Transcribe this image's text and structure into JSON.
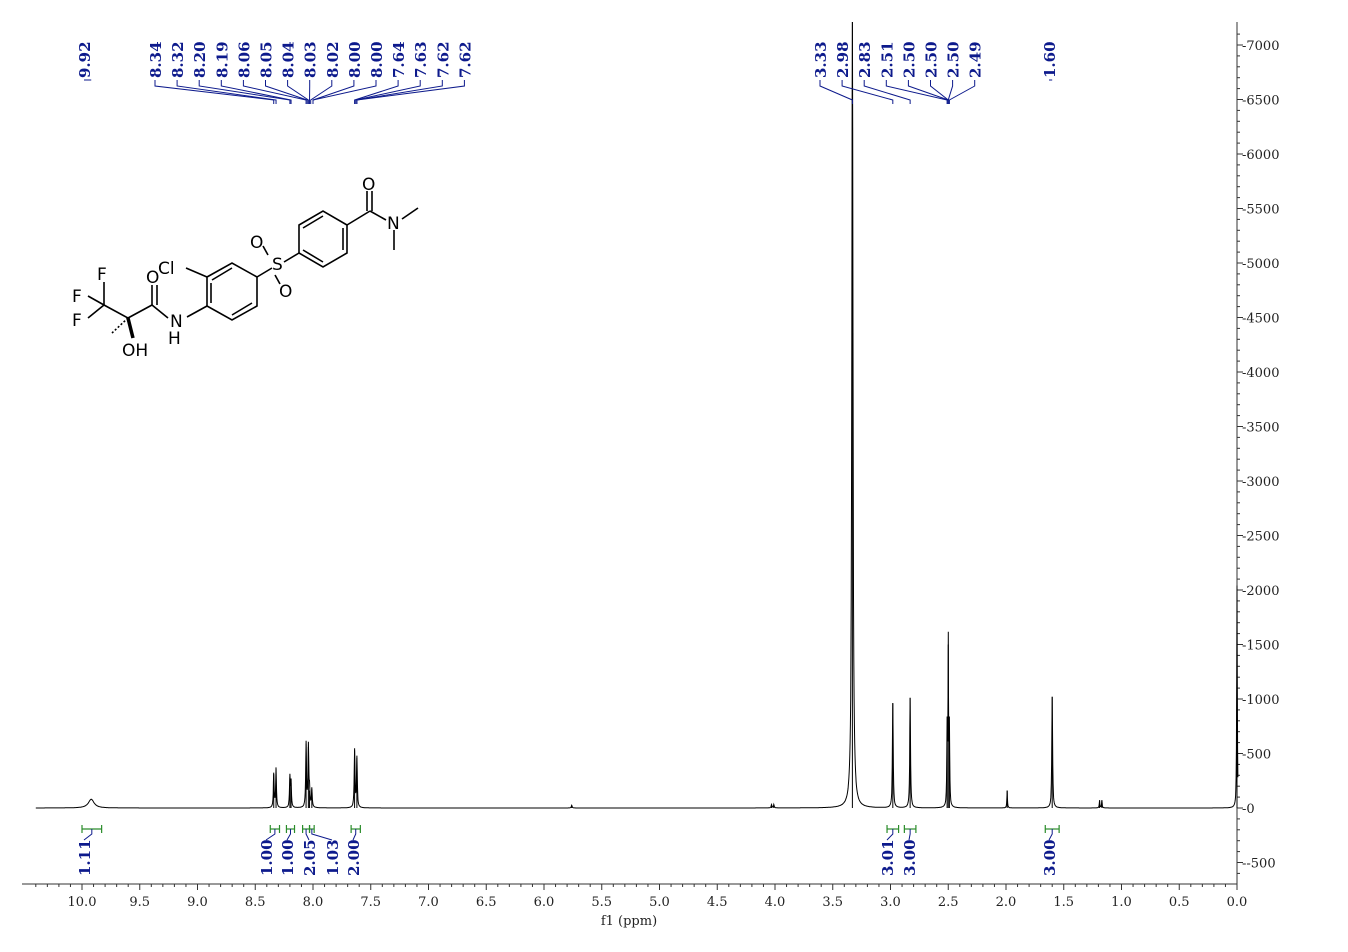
{
  "chart_data": {
    "type": "line",
    "xlabel": "f1 (ppm)",
    "ylabel": "",
    "xlim": [
      10.4,
      0.0
    ],
    "ylim": [
      -700,
      7200
    ],
    "x_ticks": [
      "10.0",
      "9.5",
      "9.0",
      "8.5",
      "8.0",
      "7.5",
      "7.0",
      "6.5",
      "6.0",
      "5.5",
      "5.0",
      "4.5",
      "4.0",
      "3.5",
      "3.0",
      "2.5",
      "2.0",
      "1.5",
      "1.0",
      "0.5",
      "0.0"
    ],
    "y_ticks": [
      "7000",
      "6500",
      "6000",
      "5500",
      "5000",
      "4500",
      "4000",
      "3500",
      "3000",
      "2500",
      "2000",
      "1500",
      "1000",
      "500",
      "0",
      "-500"
    ],
    "peaks": [
      {
        "x": 9.92,
        "y": 80,
        "width": 0.03
      },
      {
        "x": 8.34,
        "y": 310,
        "width": 0.004
      },
      {
        "x": 8.32,
        "y": 360,
        "width": 0.004
      },
      {
        "x": 8.2,
        "y": 280,
        "width": 0.004
      },
      {
        "x": 8.19,
        "y": 230,
        "width": 0.004
      },
      {
        "x": 8.06,
        "y": 590,
        "width": 0.004
      },
      {
        "x": 8.04,
        "y": 560,
        "width": 0.004
      },
      {
        "x": 8.03,
        "y": 160,
        "width": 0.004
      },
      {
        "x": 8.01,
        "y": 170,
        "width": 0.004
      },
      {
        "x": 7.64,
        "y": 530,
        "width": 0.004
      },
      {
        "x": 7.62,
        "y": 460,
        "width": 0.004
      },
      {
        "x": 5.76,
        "y": 25,
        "width": 0.004
      },
      {
        "x": 4.03,
        "y": 30,
        "width": 0.004
      },
      {
        "x": 4.01,
        "y": 30,
        "width": 0.004
      },
      {
        "x": 3.33,
        "y": 7300,
        "width": 0.006
      },
      {
        "x": 2.98,
        "y": 960,
        "width": 0.004
      },
      {
        "x": 2.83,
        "y": 1010,
        "width": 0.004
      },
      {
        "x": 2.51,
        "y": 700,
        "width": 0.003
      },
      {
        "x": 2.5,
        "y": 1500,
        "width": 0.003
      },
      {
        "x": 2.49,
        "y": 700,
        "width": 0.003
      },
      {
        "x": 1.99,
        "y": 160,
        "width": 0.003
      },
      {
        "x": 1.6,
        "y": 1020,
        "width": 0.004
      },
      {
        "x": 1.19,
        "y": 70,
        "width": 0.003
      },
      {
        "x": 1.17,
        "y": 70,
        "width": 0.003
      },
      {
        "x": 0.0,
        "y": 2040,
        "width": 0.003
      }
    ],
    "peak_labels": [
      "9.92",
      "8.34",
      "8.32",
      "8.20",
      "8.19",
      "8.06",
      "8.05",
      "8.04",
      "8.03",
      "8.02",
      "8.00",
      "8.00",
      "7.64",
      "7.63",
      "7.62",
      "7.62",
      "3.33",
      "2.98",
      "2.83",
      "2.51",
      "2.50",
      "2.50",
      "2.50",
      "2.49",
      "1.60"
    ],
    "peak_label_targets": [
      9.92,
      8.34,
      8.32,
      8.2,
      8.19,
      8.06,
      8.05,
      8.04,
      8.03,
      8.02,
      8.0,
      8.0,
      7.64,
      7.63,
      7.62,
      7.62,
      3.33,
      2.98,
      2.83,
      2.51,
      2.5,
      2.5,
      2.5,
      2.49,
      1.6
    ],
    "integrals": [
      {
        "from": 10.0,
        "to": 9.83,
        "label": "1.11"
      },
      {
        "from": 8.37,
        "to": 8.29,
        "label": "1.00"
      },
      {
        "from": 8.23,
        "to": 8.16,
        "label": "1.00"
      },
      {
        "from": 8.09,
        "to": 8.03,
        "label": "2.05"
      },
      {
        "from": 8.03,
        "to": 7.99,
        "label": "1.03"
      },
      {
        "from": 7.67,
        "to": 7.59,
        "label": "2.00"
      },
      {
        "from": 3.03,
        "to": 2.93,
        "label": "3.01"
      },
      {
        "from": 2.88,
        "to": 2.78,
        "label": "3.00"
      },
      {
        "from": 1.66,
        "to": 1.54,
        "label": "3.00"
      }
    ]
  },
  "molecule": {
    "atoms": {
      "cl": "Cl",
      "f1": "F",
      "f2": "F",
      "f3": "F",
      "o_amide": "O",
      "nh_n": "N",
      "nh_h": "H",
      "oh": "OH",
      "s": "S",
      "o_s1": "O",
      "o_s2": "O",
      "o_dma": "O",
      "n_dma": "N"
    }
  },
  "colors": {
    "spectrum": "#000000",
    "labels": "#0d1a8c",
    "integrals": "#2a8c2a",
    "axis": "#333333"
  }
}
